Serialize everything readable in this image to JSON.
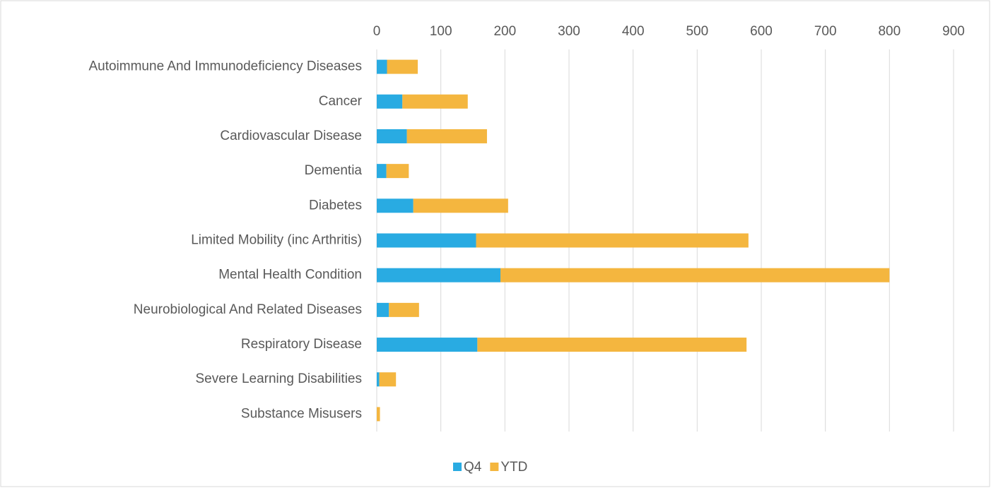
{
  "chart_data": {
    "type": "stacked_bar_horizontal",
    "categories": [
      "Autoimmune And Immunodeficiency Diseases",
      "Cancer",
      "Cardiovascular Disease",
      "Dementia",
      "Diabetes",
      "Limited Mobility (inc Arthritis)",
      "Mental Health Condition",
      "Neurobiological And Related Diseases",
      "Respiratory Disease",
      "Severe Learning Disabilities",
      "Substance Misusers"
    ],
    "series": [
      {
        "name": "Q4",
        "color": "#29abe2",
        "values": [
          16,
          40,
          47,
          15,
          57,
          155,
          193,
          19,
          157,
          4,
          0
        ]
      },
      {
        "name": "YTD",
        "color": "#f4b63f",
        "values": [
          48,
          102,
          125,
          35,
          148,
          425,
          607,
          47,
          420,
          26,
          5
        ]
      }
    ],
    "xlim": [
      0,
      900
    ],
    "xticks": [
      0,
      100,
      200,
      300,
      400,
      500,
      600,
      700,
      800,
      900
    ],
    "grid": true,
    "legend": "bottom"
  }
}
